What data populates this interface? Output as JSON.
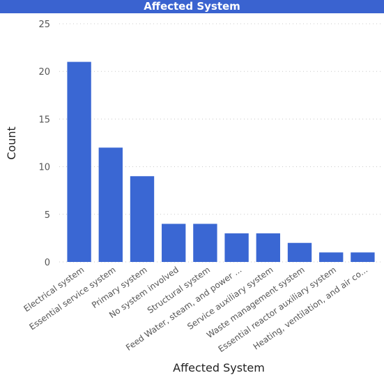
{
  "chart_data": {
    "type": "bar",
    "title": "Affected System",
    "xlabel": "Affected System",
    "ylabel": "Count",
    "ylim": [
      0,
      25
    ],
    "yticks": [
      0,
      5,
      10,
      15,
      20,
      25
    ],
    "grid": true,
    "categories": [
      "Electrical system",
      "Essential service system",
      "Primary system",
      "No system involved",
      "Structural system",
      "Feed Water, steam, and power ...",
      "Service auxiliary system",
      "Waste management system",
      "Essential reactor auxiliary system",
      "Heating, ventilation, and air co..."
    ],
    "values": [
      21,
      12,
      9,
      4,
      4,
      3,
      3,
      2,
      1,
      1
    ],
    "bar_color": "#3a67d3",
    "title_bar_color": "#3a63d0"
  }
}
